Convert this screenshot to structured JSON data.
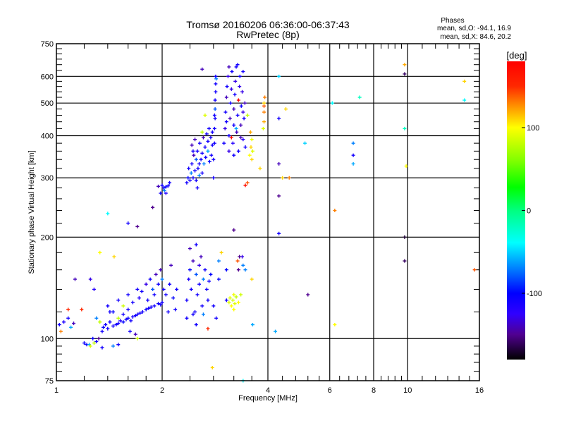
{
  "chart_data": {
    "type": "scatter",
    "title": "Tromsø 20160206 06:36:00-06:37:43",
    "subtitle": "RwPretec (8p)",
    "xlabel": "Frequency [MHz]",
    "ylabel": "Stationary phase Virtual Height [km]",
    "xscale": "log",
    "yscale": "log",
    "xlim": [
      1,
      16
    ],
    "ylim": [
      75,
      750
    ],
    "grid": true,
    "x_major_ticks": [
      {
        "v": 1,
        "label": "1"
      },
      {
        "v": 2,
        "label": "2"
      },
      {
        "v": 4,
        "label": "4"
      },
      {
        "v": 6,
        "label": "6"
      },
      {
        "v": 8,
        "label": "8"
      },
      {
        "v": 10,
        "label": "10"
      },
      {
        "v": 16,
        "label": "16"
      }
    ],
    "x_grid": [
      2,
      4,
      6,
      8,
      10
    ],
    "x_minor_ticks": [
      1.2,
      1.4,
      1.6,
      1.8,
      2.4,
      2.8,
      3.2,
      3.6,
      4.4,
      4.8,
      5.2,
      5.6,
      6.4,
      6.8,
      7.2,
      7.6,
      8.4,
      8.8,
      9.2,
      9.6,
      11,
      12,
      13,
      14,
      15
    ],
    "y_major_ticks": [
      {
        "v": 75,
        "label": "75"
      },
      {
        "v": 100,
        "label": "100"
      },
      {
        "v": 200,
        "label": "200"
      },
      {
        "v": 300,
        "label": "300"
      },
      {
        "v": 400,
        "label": "400"
      },
      {
        "v": 500,
        "label": "500"
      },
      {
        "v": 600,
        "label": "600"
      },
      {
        "v": 750,
        "label": "750"
      }
    ],
    "y_grid": [
      100,
      200,
      300,
      400,
      500,
      600
    ],
    "y_minor_ticks": [
      80,
      85,
      90,
      95,
      120,
      140,
      160,
      180,
      220,
      240,
      260,
      280,
      320,
      340,
      360,
      380,
      420,
      440,
      460,
      480,
      520,
      540,
      560,
      580,
      625,
      650,
      675,
      700,
      725
    ],
    "annotation": {
      "heading": "Phases",
      "line_o": "mean, sd,O: -94.1, 16.9",
      "line_x": "mean, sd,X:  84.6, 20.2"
    },
    "colorbar": {
      "label": "[deg]",
      "range": [
        -180,
        180
      ],
      "ticks": [
        {
          "v": 100,
          "label": "100"
        },
        {
          "v": 0,
          "label": "0"
        },
        {
          "v": -100,
          "label": "-100"
        }
      ]
    },
    "point_fields": [
      "frequency_mhz",
      "height_km",
      "phase_deg"
    ],
    "points": [
      [
        1.02,
        110,
        -110
      ],
      [
        1.05,
        112,
        -115
      ],
      [
        1.08,
        115,
        -110
      ],
      [
        1.1,
        108,
        -60
      ],
      [
        1.12,
        111,
        -140
      ],
      [
        1.03,
        105,
        130
      ],
      [
        1.08,
        122,
        150
      ],
      [
        1.18,
        122,
        150
      ],
      [
        1.13,
        150,
        -140
      ],
      [
        1.2,
        97,
        -105
      ],
      [
        1.22,
        96,
        -110
      ],
      [
        1.24,
        96,
        -60
      ],
      [
        1.25,
        95,
        90
      ],
      [
        1.27,
        100,
        -105
      ],
      [
        1.28,
        97,
        80
      ],
      [
        1.3,
        98,
        -110
      ],
      [
        1.32,
        100,
        -150
      ],
      [
        1.35,
        94,
        -110
      ],
      [
        1.33,
        112,
        80
      ],
      [
        1.3,
        115,
        -70
      ],
      [
        1.36,
        108,
        -105
      ],
      [
        1.38,
        110,
        -110
      ],
      [
        1.4,
        107,
        -110
      ],
      [
        1.42,
        112,
        -110
      ],
      [
        1.45,
        109,
        -110
      ],
      [
        1.48,
        110,
        -108
      ],
      [
        1.5,
        111,
        -110
      ],
      [
        1.52,
        113,
        -120
      ],
      [
        1.55,
        112,
        -100
      ],
      [
        1.58,
        114,
        -110
      ],
      [
        1.6,
        115,
        -105
      ],
      [
        1.63,
        113,
        -110
      ],
      [
        1.65,
        116,
        -112
      ],
      [
        1.68,
        117,
        -110
      ],
      [
        1.7,
        118,
        -110
      ],
      [
        1.73,
        119,
        -110
      ],
      [
        1.76,
        120,
        -110
      ],
      [
        1.8,
        122,
        -105
      ],
      [
        1.83,
        123,
        -110
      ],
      [
        1.86,
        124,
        -110
      ],
      [
        1.9,
        125,
        -110
      ],
      [
        1.95,
        127,
        -108
      ],
      [
        1.98,
        126,
        -110
      ],
      [
        2.0,
        128,
        -110
      ],
      [
        1.4,
        125,
        -110
      ],
      [
        1.45,
        120,
        -100
      ],
      [
        1.5,
        130,
        -110
      ],
      [
        1.55,
        125,
        85
      ],
      [
        1.6,
        135,
        -110
      ],
      [
        1.65,
        128,
        -110
      ],
      [
        1.7,
        140,
        -110
      ],
      [
        1.72,
        132,
        -120
      ],
      [
        1.75,
        138,
        -110
      ],
      [
        1.8,
        145,
        -130
      ],
      [
        1.82,
        130,
        -110
      ],
      [
        1.85,
        150,
        -110
      ],
      [
        1.88,
        140,
        -80
      ],
      [
        1.9,
        135,
        -110
      ],
      [
        1.92,
        155,
        -140
      ],
      [
        1.95,
        145,
        -110
      ],
      [
        1.98,
        160,
        -140
      ],
      [
        2.0,
        150,
        -70
      ],
      [
        2.02,
        140,
        -110
      ],
      [
        2.05,
        135,
        -110
      ],
      [
        2.08,
        120,
        -110
      ],
      [
        2.1,
        145,
        -110
      ],
      [
        2.12,
        165,
        -140
      ],
      [
        2.15,
        132,
        -100
      ],
      [
        2.18,
        122,
        -110
      ],
      [
        2.2,
        140,
        -110
      ],
      [
        1.42,
        120,
        -110
      ],
      [
        1.35,
        105,
        -110
      ],
      [
        1.5,
        115,
        80
      ],
      [
        1.55,
        118,
        -110
      ],
      [
        1.6,
        122,
        -110
      ],
      [
        1.62,
        105,
        -110
      ],
      [
        1.68,
        103,
        -140
      ],
      [
        1.7,
        100,
        85
      ],
      [
        1.5,
        96,
        -110
      ],
      [
        1.45,
        95,
        -70
      ],
      [
        1.28,
        140,
        -120
      ],
      [
        1.25,
        150,
        -130
      ],
      [
        1.33,
        180,
        100
      ],
      [
        1.46,
        175,
        110
      ],
      [
        2.35,
        130,
        -110
      ],
      [
        2.38,
        150,
        -115
      ],
      [
        2.4,
        160,
        -100
      ],
      [
        2.42,
        140,
        -110
      ],
      [
        2.45,
        170,
        -140
      ],
      [
        2.48,
        120,
        -110
      ],
      [
        2.5,
        155,
        -80
      ],
      [
        2.52,
        135,
        -110
      ],
      [
        2.55,
        145,
        -110
      ],
      [
        2.58,
        175,
        -140
      ],
      [
        2.6,
        125,
        -110
      ],
      [
        2.62,
        150,
        -70
      ],
      [
        2.65,
        160,
        -110
      ],
      [
        2.68,
        140,
        -110
      ],
      [
        2.7,
        130,
        -110
      ],
      [
        2.72,
        148,
        -110
      ],
      [
        2.75,
        155,
        -100
      ],
      [
        2.4,
        185,
        -140
      ],
      [
        2.45,
        118,
        -110
      ],
      [
        2.5,
        190,
        -110
      ],
      [
        2.55,
        165,
        -130
      ],
      [
        2.62,
        118,
        -70
      ],
      [
        2.8,
        125,
        -110
      ],
      [
        2.85,
        115,
        -110
      ],
      [
        2.9,
        150,
        -100
      ],
      [
        2.9,
        170,
        -70
      ],
      [
        2.95,
        180,
        110
      ],
      [
        2.7,
        107,
        150
      ],
      [
        2.35,
        115,
        -110
      ],
      [
        2.5,
        110,
        -110
      ],
      [
        3.1,
        128,
        90
      ],
      [
        3.12,
        132,
        90
      ],
      [
        3.15,
        125,
        100
      ],
      [
        3.18,
        130,
        85
      ],
      [
        3.2,
        135,
        95
      ],
      [
        3.22,
        127,
        90
      ],
      [
        3.25,
        133,
        80
      ],
      [
        3.3,
        128,
        100
      ],
      [
        3.35,
        135,
        85
      ],
      [
        3.05,
        130,
        -110
      ],
      [
        3.2,
        122,
        100
      ],
      [
        3.3,
        160,
        -150
      ],
      [
        3.32,
        175,
        -150
      ],
      [
        3.28,
        170,
        140
      ],
      [
        3.4,
        165,
        -70
      ],
      [
        3.38,
        175,
        -130
      ],
      [
        3.45,
        160,
        -70
      ],
      [
        3.05,
        160,
        -100
      ],
      [
        3.62,
        110,
        -60
      ],
      [
        2.78,
        82,
        110
      ],
      [
        3.6,
        150,
        110
      ],
      [
        1.95,
        283,
        -140
      ],
      [
        2.0,
        285,
        -110
      ],
      [
        2.02,
        280,
        -110
      ],
      [
        2.05,
        282,
        -100
      ],
      [
        2.08,
        284,
        -110
      ],
      [
        2.1,
        290,
        -110
      ],
      [
        2.03,
        275,
        -70
      ],
      [
        1.98,
        270,
        -110
      ],
      [
        2.35,
        290,
        -110
      ],
      [
        2.37,
        300,
        -100
      ],
      [
        2.38,
        320,
        -110
      ],
      [
        2.4,
        295,
        -110
      ],
      [
        2.42,
        310,
        -70
      ],
      [
        2.43,
        330,
        -110
      ],
      [
        2.45,
        300,
        -110
      ],
      [
        2.46,
        350,
        -140
      ],
      [
        2.48,
        315,
        -110
      ],
      [
        2.5,
        340,
        -80
      ],
      [
        2.5,
        295,
        -110
      ],
      [
        2.52,
        360,
        -110
      ],
      [
        2.53,
        320,
        -110
      ],
      [
        2.55,
        305,
        -70
      ],
      [
        2.56,
        380,
        -110
      ],
      [
        2.58,
        340,
        -110
      ],
      [
        2.6,
        355,
        -110
      ],
      [
        2.6,
        310,
        -110
      ],
      [
        2.62,
        395,
        -140
      ],
      [
        2.63,
        330,
        -70
      ],
      [
        2.65,
        370,
        -110
      ],
      [
        2.66,
        345,
        -110
      ],
      [
        2.68,
        405,
        -110
      ],
      [
        2.7,
        360,
        -60
      ],
      [
        2.7,
        385,
        -110
      ],
      [
        2.72,
        420,
        -110
      ],
      [
        2.73,
        335,
        -100
      ],
      [
        2.75,
        395,
        -110
      ],
      [
        2.76,
        350,
        -110
      ],
      [
        2.78,
        410,
        -110
      ],
      [
        2.78,
        375,
        -110
      ],
      [
        2.8,
        340,
        -110
      ],
      [
        2.8,
        300,
        -110
      ],
      [
        2.43,
        375,
        -140
      ],
      [
        2.48,
        390,
        -140
      ],
      [
        2.52,
        280,
        -110
      ],
      [
        2.65,
        460,
        90
      ],
      [
        2.6,
        410,
        80
      ],
      [
        2.55,
        330,
        -110
      ],
      [
        2.45,
        360,
        -110
      ],
      [
        2.82,
        380,
        -110
      ],
      [
        2.82,
        420,
        -110
      ],
      [
        2.83,
        450,
        -110
      ],
      [
        2.83,
        480,
        -80
      ],
      [
        2.83,
        510,
        -110
      ],
      [
        2.84,
        540,
        -110
      ],
      [
        2.84,
        570,
        -110
      ],
      [
        2.85,
        590,
        -70
      ],
      [
        2.84,
        600,
        -110
      ],
      [
        2.82,
        460,
        -110
      ],
      [
        3.0,
        380,
        -110
      ],
      [
        3.02,
        420,
        -130
      ],
      [
        3.03,
        470,
        -110
      ],
      [
        3.05,
        520,
        -140
      ],
      [
        3.06,
        560,
        -110
      ],
      [
        3.08,
        600,
        -130
      ],
      [
        3.1,
        640,
        -140
      ],
      [
        3.1,
        400,
        -110
      ],
      [
        3.12,
        450,
        -140
      ],
      [
        3.13,
        500,
        -110
      ],
      [
        3.15,
        550,
        -130
      ],
      [
        3.16,
        620,
        -110
      ],
      [
        3.18,
        380,
        -120
      ],
      [
        3.2,
        430,
        -110
      ],
      [
        3.2,
        480,
        -140
      ],
      [
        3.22,
        530,
        -110
      ],
      [
        3.23,
        580,
        -130
      ],
      [
        3.25,
        640,
        -110
      ],
      [
        3.26,
        410,
        -140
      ],
      [
        3.28,
        460,
        -110
      ],
      [
        3.3,
        510,
        180
      ],
      [
        3.3,
        360,
        -110
      ],
      [
        3.32,
        560,
        -130
      ],
      [
        3.33,
        600,
        -110
      ],
      [
        3.35,
        430,
        -140
      ],
      [
        3.36,
        490,
        -110
      ],
      [
        3.38,
        540,
        -130
      ],
      [
        3.4,
        620,
        -110
      ],
      [
        3.4,
        390,
        -120
      ],
      [
        3.42,
        450,
        -110
      ],
      [
        3.44,
        500,
        -140
      ],
      [
        3.45,
        370,
        -110
      ],
      [
        3.1,
        360,
        -130
      ],
      [
        3.15,
        395,
        170
      ],
      [
        3.05,
        440,
        -110
      ],
      [
        3.25,
        420,
        -60
      ],
      [
        3.35,
        395,
        -140
      ],
      [
        3.2,
        350,
        -110
      ],
      [
        3.28,
        650,
        -110
      ],
      [
        3.4,
        470,
        -130
      ],
      [
        3.55,
        350,
        100
      ],
      [
        3.58,
        370,
        110
      ],
      [
        3.6,
        390,
        95
      ],
      [
        3.57,
        410,
        120
      ],
      [
        3.62,
        360,
        90
      ],
      [
        3.6,
        340,
        110
      ],
      [
        3.5,
        460,
        80
      ],
      [
        3.5,
        290,
        140
      ],
      [
        3.45,
        285,
        170
      ],
      [
        3.8,
        320,
        110
      ],
      [
        3.9,
        440,
        120
      ],
      [
        3.9,
        470,
        130
      ],
      [
        3.9,
        490,
        140
      ],
      [
        3.92,
        520,
        130
      ],
      [
        3.9,
        500,
        110
      ],
      [
        3.88,
        420,
        90
      ],
      [
        9.8,
        610,
        -160
      ],
      [
        9.8,
        650,
        120
      ],
      [
        9.8,
        170,
        -160
      ],
      [
        9.8,
        200,
        -170
      ],
      [
        9.8,
        420,
        -20
      ],
      [
        9.9,
        325,
        100
      ],
      [
        14.5,
        510,
        -40
      ],
      [
        14.5,
        580,
        110
      ],
      [
        15.5,
        160,
        140
      ],
      [
        4.3,
        205,
        -110
      ],
      [
        4.3,
        265,
        -150
      ],
      [
        4.3,
        330,
        -140
      ],
      [
        4.3,
        450,
        -110
      ],
      [
        4.3,
        600,
        -50
      ],
      [
        4.4,
        300,
        110
      ],
      [
        4.6,
        300,
        130
      ],
      [
        5.1,
        380,
        -50
      ],
      [
        6.1,
        500,
        -40
      ],
      [
        7.0,
        380,
        -70
      ],
      [
        7.0,
        350,
        -110
      ],
      [
        7.0,
        330,
        -60
      ],
      [
        5.2,
        135,
        -150
      ],
      [
        4.2,
        105,
        -60
      ],
      [
        6.2,
        110,
        100
      ],
      [
        6.2,
        240,
        130
      ],
      [
        1.7,
        215,
        -150
      ],
      [
        1.6,
        220,
        -110
      ],
      [
        1.4,
        235,
        -40
      ],
      [
        1.88,
        245,
        -150
      ],
      [
        2.6,
        630,
        -140
      ],
      [
        2.05,
        270,
        -120
      ],
      [
        4.5,
        480,
        110
      ],
      [
        3.2,
        210,
        -150
      ],
      [
        7.3,
        520,
        -20
      ],
      [
        3.4,
        75,
        -40
      ]
    ]
  }
}
